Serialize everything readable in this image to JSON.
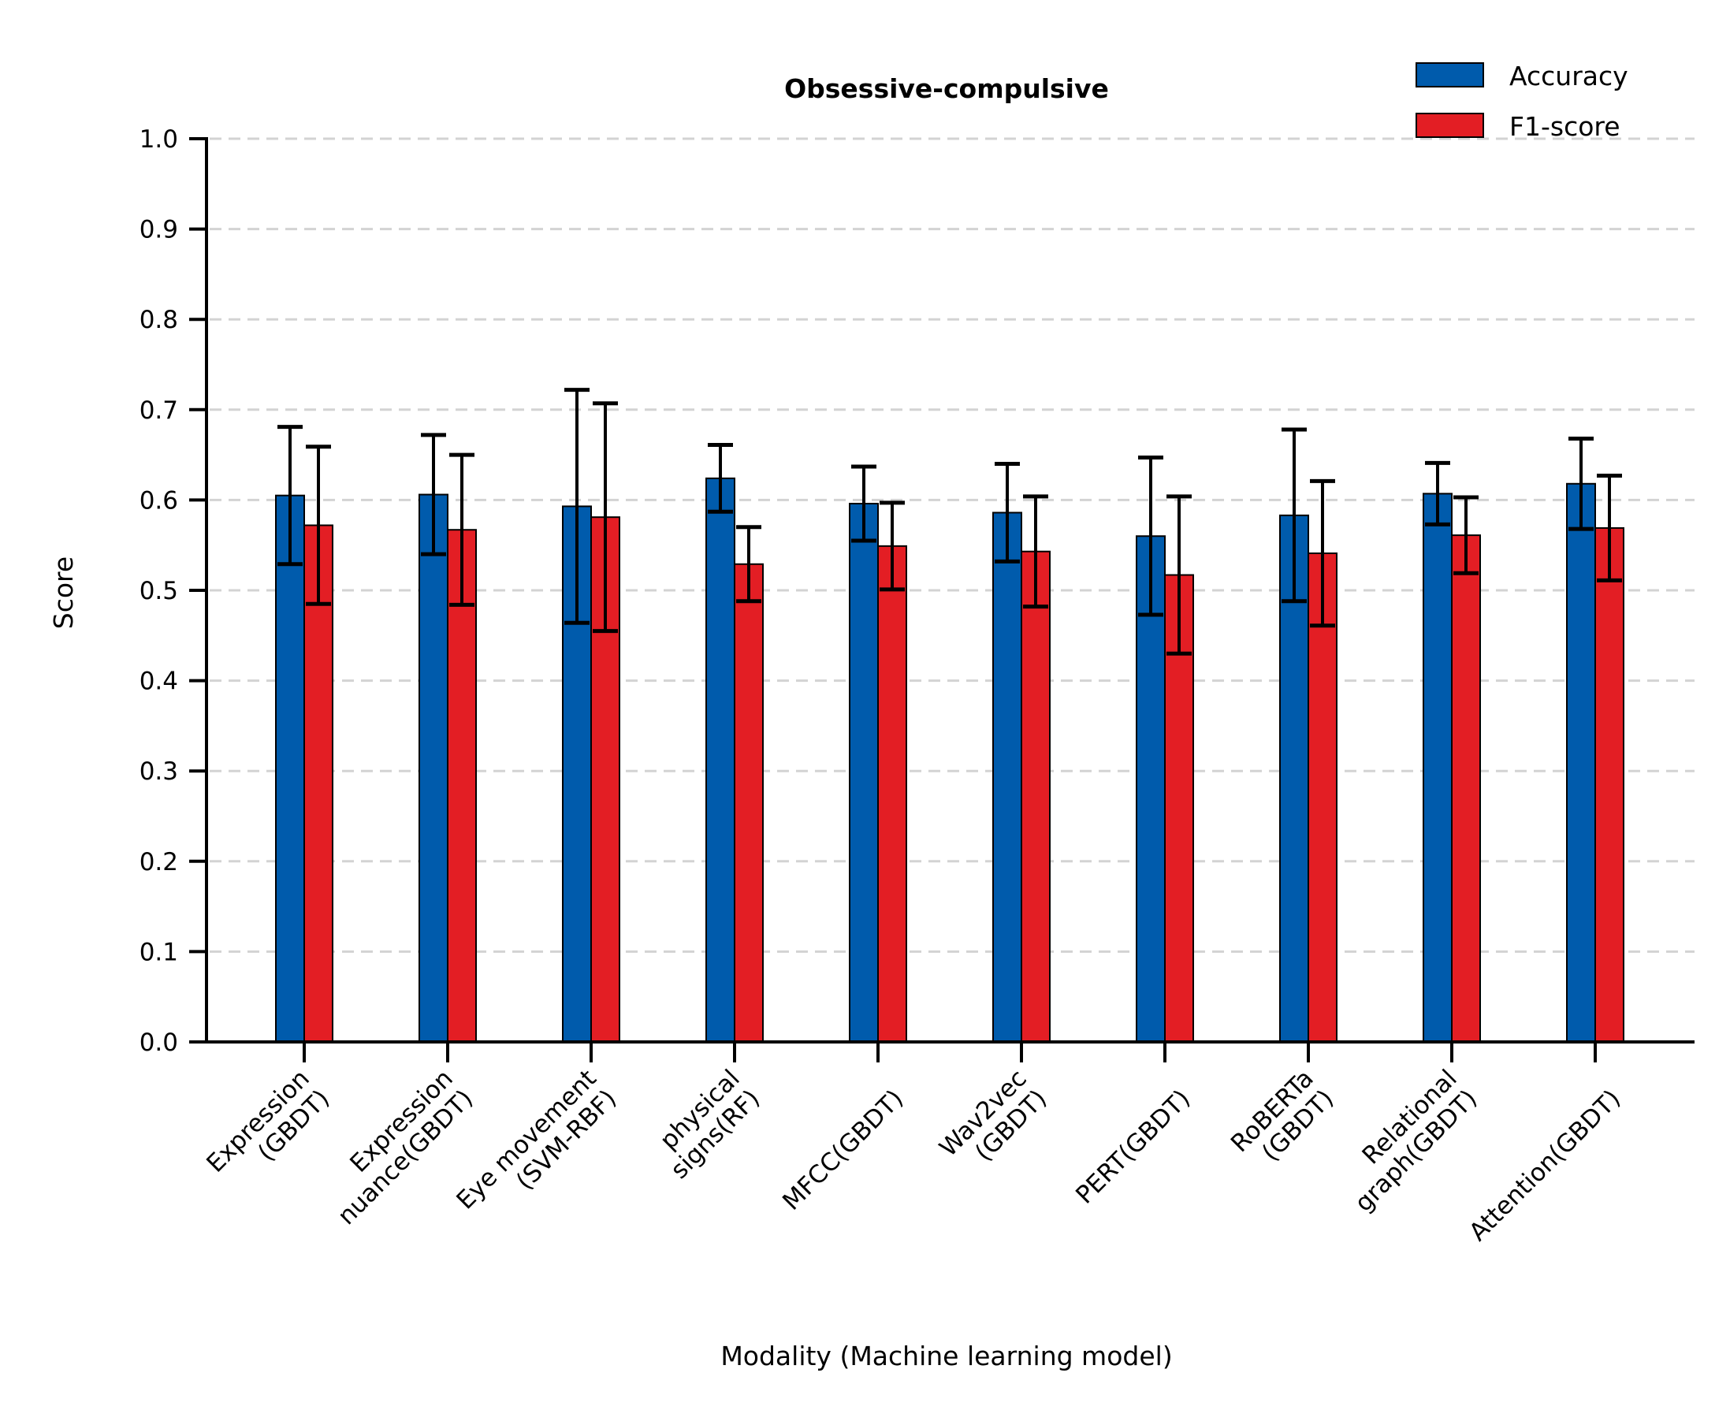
{
  "chart_data": {
    "type": "bar",
    "title": "Obsessive-compulsive",
    "xlabel": "Modality (Machine learning model)",
    "ylabel": "Score",
    "ylim": [
      0,
      1.0
    ],
    "yticks": [
      "0.0",
      "0.1",
      "0.2",
      "0.3",
      "0.4",
      "0.5",
      "0.6",
      "0.7",
      "0.8",
      "0.9",
      "1.0"
    ],
    "grid": true,
    "legend_position": "top-right",
    "categories": [
      [
        "Expression",
        "(GBDT)"
      ],
      [
        "Expression",
        "nuance(GBDT)"
      ],
      [
        "Eye movement",
        "(SVM-RBF)"
      ],
      [
        "physical",
        "signs(RF)"
      ],
      [
        "MFCC(GBDT)"
      ],
      [
        "Wav2vec",
        "(GBDT)"
      ],
      [
        "PERT(GBDT)"
      ],
      [
        "RoBERTa",
        "(GBDT)"
      ],
      [
        "Relational",
        "graph(GBDT)"
      ],
      [
        "Attention(GBDT)"
      ]
    ],
    "series": [
      {
        "name": "Accuracy",
        "color": "#005bac",
        "values": [
          0.605,
          0.606,
          0.593,
          0.624,
          0.596,
          0.586,
          0.56,
          0.583,
          0.607,
          0.618
        ],
        "error": [
          0.076,
          0.066,
          0.129,
          0.037,
          0.041,
          0.054,
          0.087,
          0.095,
          0.034,
          0.05
        ]
      },
      {
        "name": "F1-score",
        "color": "#e31e24",
        "values": [
          0.572,
          0.567,
          0.581,
          0.529,
          0.549,
          0.543,
          0.517,
          0.541,
          0.561,
          0.569
        ],
        "error": [
          0.087,
          0.083,
          0.126,
          0.041,
          0.048,
          0.061,
          0.087,
          0.08,
          0.042,
          0.058
        ]
      }
    ]
  }
}
